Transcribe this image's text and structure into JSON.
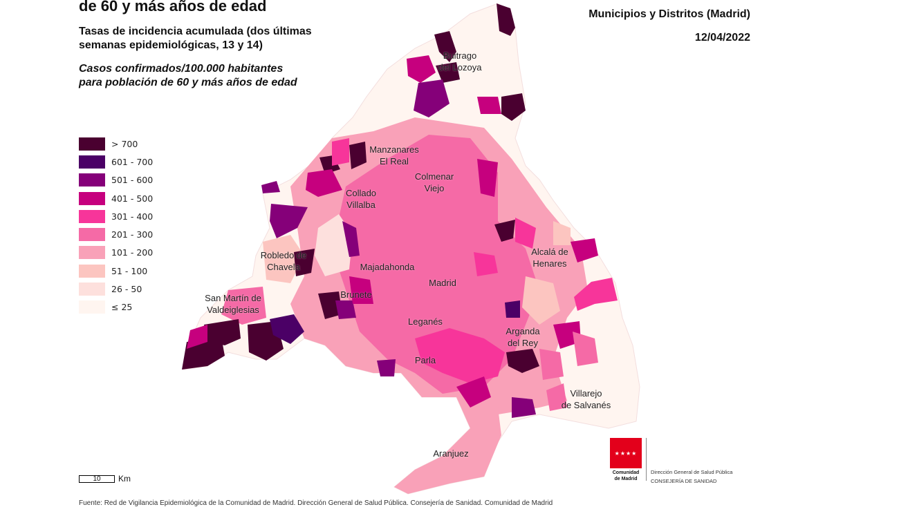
{
  "header": {
    "title_visible": "de 60 y más años de edad",
    "subtitle": [
      "Tasas de incidencia acumulada (dos últimas",
      "semanas epidemiológicas, 13 y 14)"
    ],
    "units": [
      "Casos confirmados/100.000 habitantes",
      "para población de 60 y más años de edad"
    ],
    "scope": "Municipios y Distritos (Madrid)",
    "date": "12/04/2022"
  },
  "legend": [
    {
      "label": "> 700",
      "color": "#4a0030"
    },
    {
      "label": "601 - 700",
      "color": "#4b0066"
    },
    {
      "label": "501 - 600",
      "color": "#850079"
    },
    {
      "label": "401 - 500",
      "color": "#c6007e"
    },
    {
      "label": "301 - 400",
      "color": "#f7359a"
    },
    {
      "label": "201 - 300",
      "color": "#f56aa6"
    },
    {
      "label": "101 - 200",
      "color": "#f9a1b8"
    },
    {
      "label": "51 - 100",
      "color": "#fcc5c0"
    },
    {
      "label": "26 - 50",
      "color": "#fde0dd"
    },
    {
      "label": "≤ 25",
      "color": "#fff5f0"
    }
  ],
  "places": [
    {
      "name": [
        "Buitrago",
        "del Lozoya"
      ]
    },
    {
      "name": [
        "Manzanares",
        "El Real"
      ]
    },
    {
      "name": [
        "Colmenar",
        "Viejo"
      ]
    },
    {
      "name": [
        "Collado",
        "Villalba"
      ]
    },
    {
      "name": [
        "Robledo de",
        "Chavela"
      ]
    },
    {
      "name": [
        "Majadahonda"
      ]
    },
    {
      "name": [
        "Madrid"
      ]
    },
    {
      "name": [
        "Alcalá de",
        "Henares"
      ]
    },
    {
      "name": [
        "San Martín de",
        "Valdeiglesias"
      ]
    },
    {
      "name": [
        "Brunete"
      ]
    },
    {
      "name": [
        "Leganés"
      ]
    },
    {
      "name": [
        "Arganda",
        "del Rey"
      ]
    },
    {
      "name": [
        "Parla"
      ]
    },
    {
      "name": [
        "Villarejo",
        "de Salvanés"
      ]
    },
    {
      "name": [
        "Aranjuez"
      ]
    }
  ],
  "scale": {
    "value": "10",
    "unit": "Km"
  },
  "logo": {
    "org": [
      "Comunidad",
      "de Madrid"
    ],
    "dept": "Dirección General de Salud Pública",
    "ministry": "CONSEJERÍA DE SANIDAD"
  },
  "source": "Fuente: Red de Vigilancia Epidemiológica de la Comunidad de Madrid. Dirección General de Salud Pública. Consejería de Sanidad. Comunidad de Madrid"
}
